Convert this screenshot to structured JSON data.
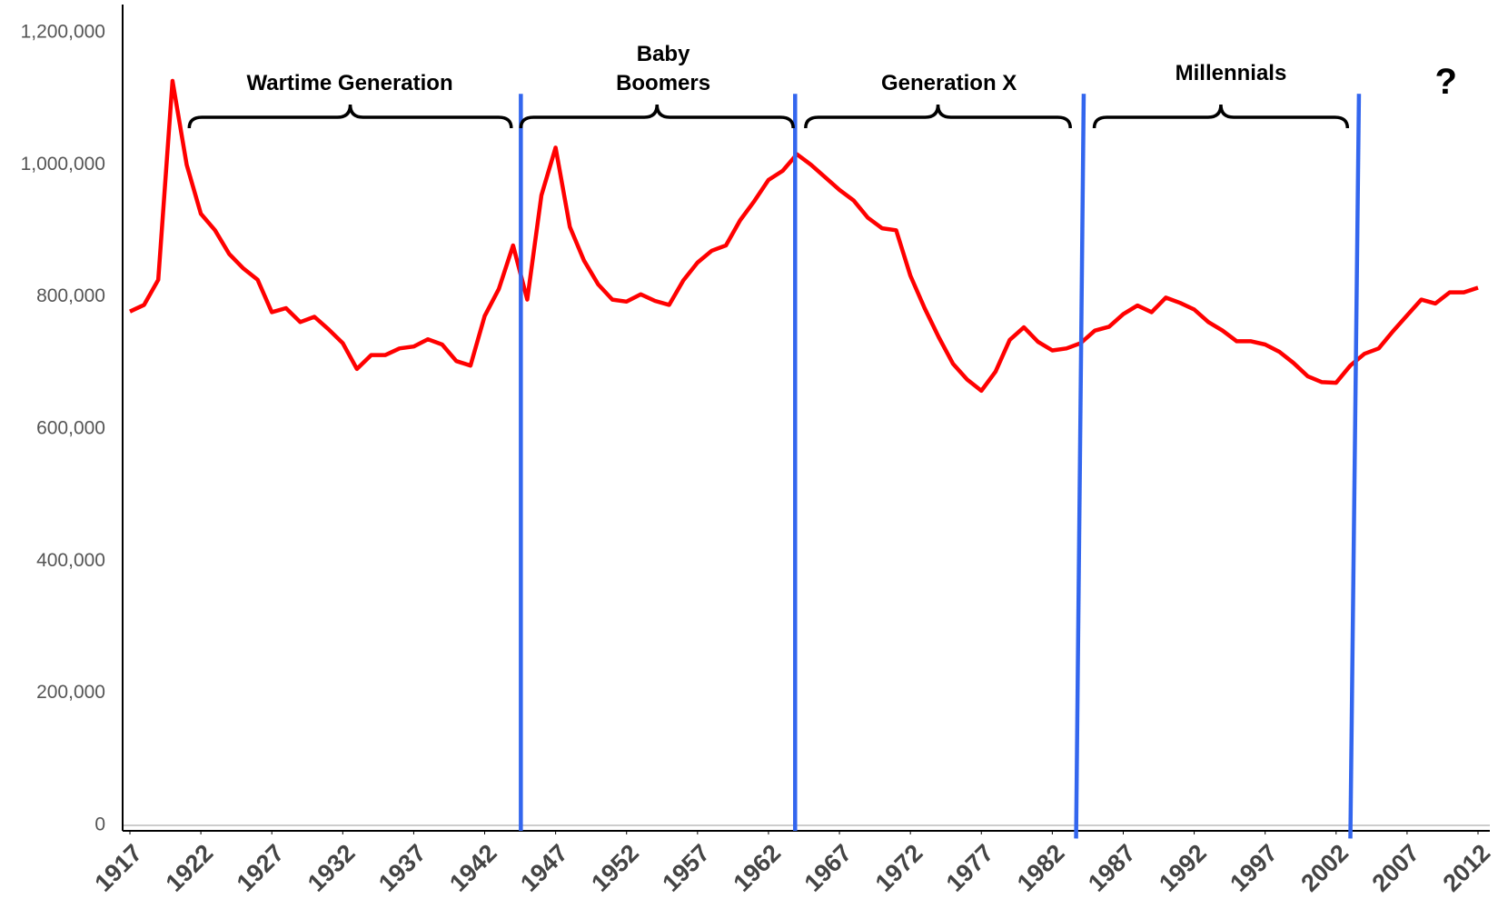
{
  "chart_data": {
    "type": "line",
    "x": [
      1917,
      1918,
      1919,
      1920,
      1921,
      1922,
      1923,
      1924,
      1925,
      1926,
      1927,
      1928,
      1929,
      1930,
      1931,
      1932,
      1933,
      1934,
      1935,
      1936,
      1937,
      1938,
      1939,
      1940,
      1941,
      1942,
      1943,
      1944,
      1945,
      1946,
      1947,
      1948,
      1949,
      1950,
      1951,
      1952,
      1953,
      1954,
      1955,
      1956,
      1957,
      1958,
      1959,
      1960,
      1961,
      1962,
      1963,
      1964,
      1965,
      1966,
      1967,
      1968,
      1969,
      1970,
      1971,
      1972,
      1973,
      1974,
      1975,
      1976,
      1977,
      1978,
      1979,
      1980,
      1981,
      1982,
      1983,
      1984,
      1985,
      1986,
      1987,
      1988,
      1989,
      1990,
      1991,
      1992,
      1993,
      1994,
      1995,
      1996,
      1997,
      1998,
      1999,
      2000,
      2001,
      2002,
      2003,
      2004,
      2005,
      2006,
      2007,
      2008,
      2009,
      2010,
      2011,
      2012
    ],
    "values": [
      778000,
      788000,
      826000,
      1127000,
      1000000,
      926000,
      901000,
      865000,
      843000,
      826000,
      777000,
      783000,
      762000,
      770000,
      751000,
      730000,
      691000,
      712000,
      712000,
      722000,
      725000,
      736000,
      728000,
      703000,
      696000,
      771000,
      812000,
      878000,
      796000,
      954000,
      1026000,
      906000,
      855000,
      819000,
      796000,
      793000,
      804000,
      794000,
      788000,
      825000,
      852000,
      870000,
      878000,
      916000,
      945000,
      977000,
      991000,
      1016000,
      1000000,
      981000,
      962000,
      946000,
      920000,
      904000,
      901000,
      832000,
      783000,
      739000,
      699000,
      675000,
      658000,
      687000,
      735000,
      754000,
      732000,
      719000,
      722000,
      730000,
      749000,
      755000,
      774000,
      787000,
      777000,
      799000,
      791000,
      781000,
      762000,
      749000,
      733000,
      733000,
      728000,
      717000,
      700000,
      680000,
      671000,
      670000,
      696000,
      714000,
      722000,
      748000,
      772000,
      796000,
      790000,
      807000,
      807000,
      814000
    ],
    "color": "#ff0000",
    "xlim": [
      1917,
      2012
    ],
    "xticks": [
      1917,
      1922,
      1927,
      1932,
      1937,
      1942,
      1947,
      1952,
      1957,
      1962,
      1967,
      1972,
      1977,
      1982,
      1987,
      1992,
      1997,
      2002,
      2007,
      2012
    ],
    "ylim": [
      0,
      1200000
    ],
    "yticks": [
      0,
      {
        "value": 200000,
        "label": "200,000"
      },
      {
        "value": 400000,
        "label": "400,000"
      },
      {
        "value": 600000,
        "label": "600,000"
      },
      {
        "value": 800000,
        "label": "800,000"
      },
      {
        "value": 1000000,
        "label": "1,000,000"
      },
      {
        "value": 1200000,
        "label": "1,200,000"
      }
    ],
    "annotations": [
      "Wartime Generation",
      "Baby Boomers",
      "Generation X",
      "Millennials",
      "?"
    ]
  }
}
